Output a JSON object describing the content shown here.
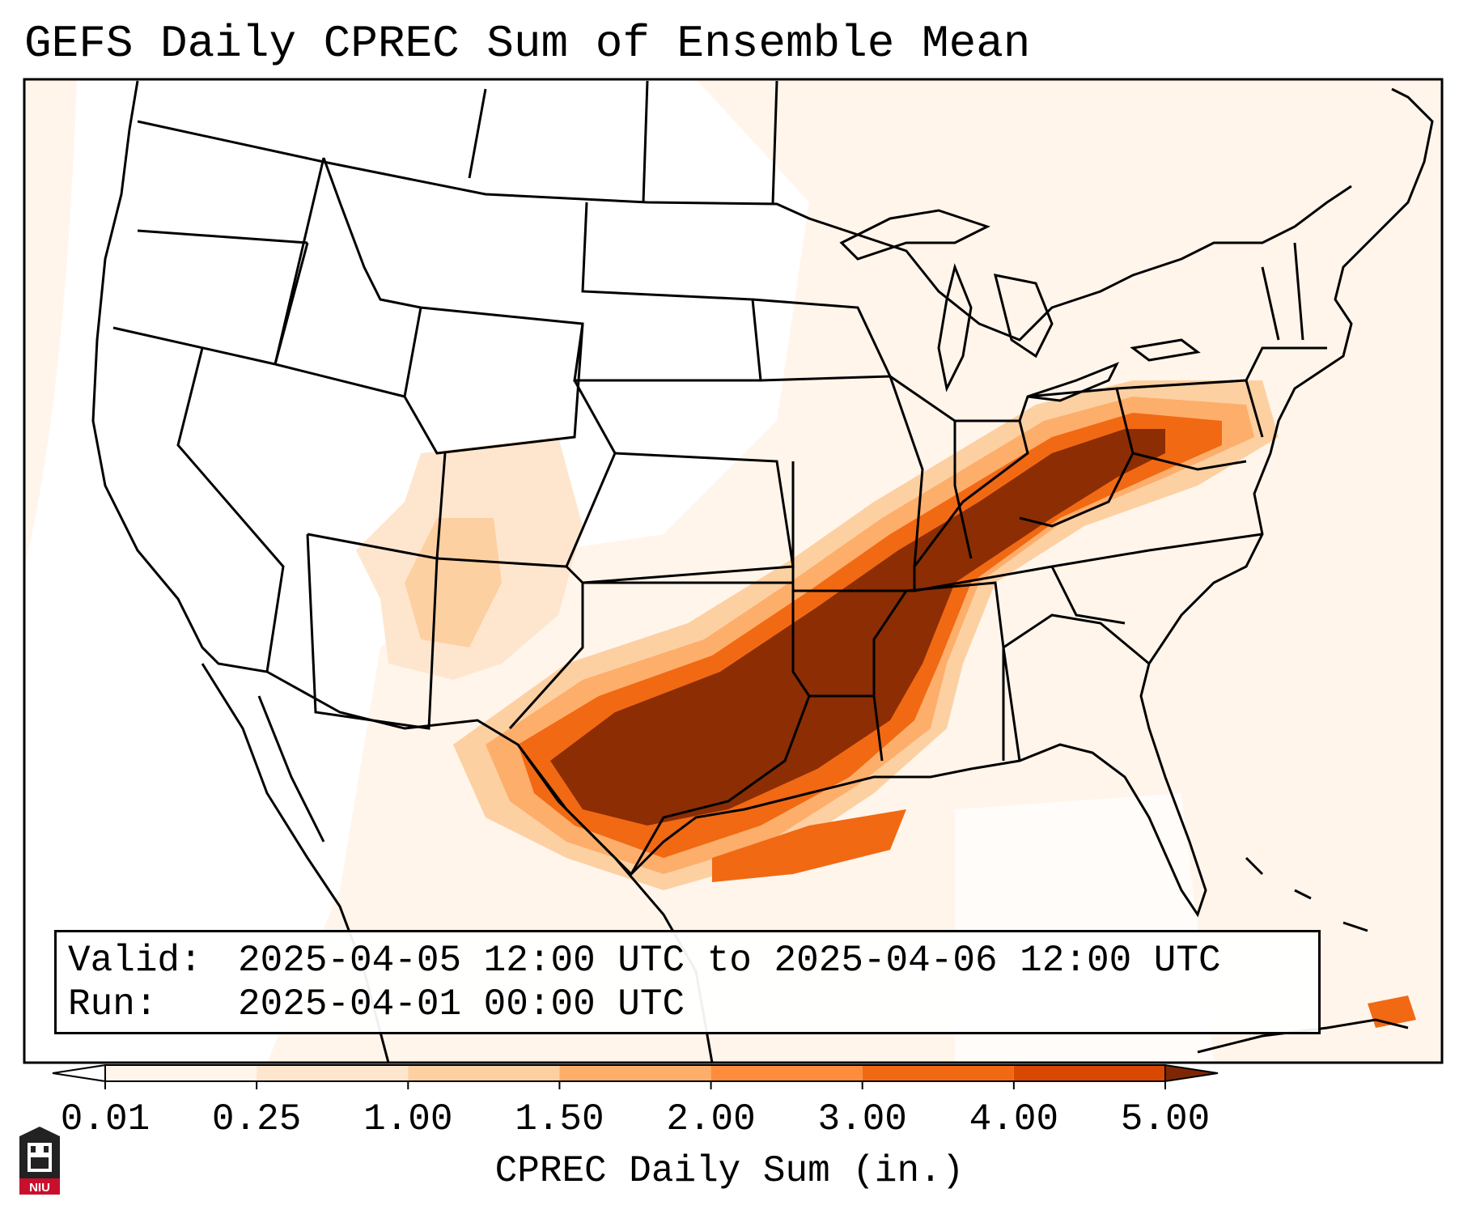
{
  "title": "GEFS Daily CPREC Sum of Ensemble Mean",
  "info": {
    "valid_label": "Valid:",
    "valid_value": "2025-04-05 12:00 UTC to 2025-04-06 12:00 UTC",
    "run_label": "Run:",
    "run_value": "2025-04-01 00:00 UTC"
  },
  "colorbar": {
    "label": "CPREC Daily Sum (in.)",
    "ticks": [
      "0.01",
      "0.25",
      "1.00",
      "1.50",
      "2.00",
      "3.00",
      "4.00",
      "5.00"
    ],
    "colors": [
      "#fff5eb",
      "#fee6ce",
      "#fdd0a2",
      "#fdae6b",
      "#fd8d3c",
      "#f16913",
      "#d94801",
      "#8c2d04"
    ],
    "under_color": "#ffffff",
    "over_color": "#7f2704"
  },
  "map": {
    "region": "Contiguous United States",
    "heavy_band_color": "#8c2d04",
    "heavy_band_region": "Southern Plains to Ohio Valley"
  },
  "logo": {
    "text": "NIU",
    "color": "#c8102e"
  }
}
